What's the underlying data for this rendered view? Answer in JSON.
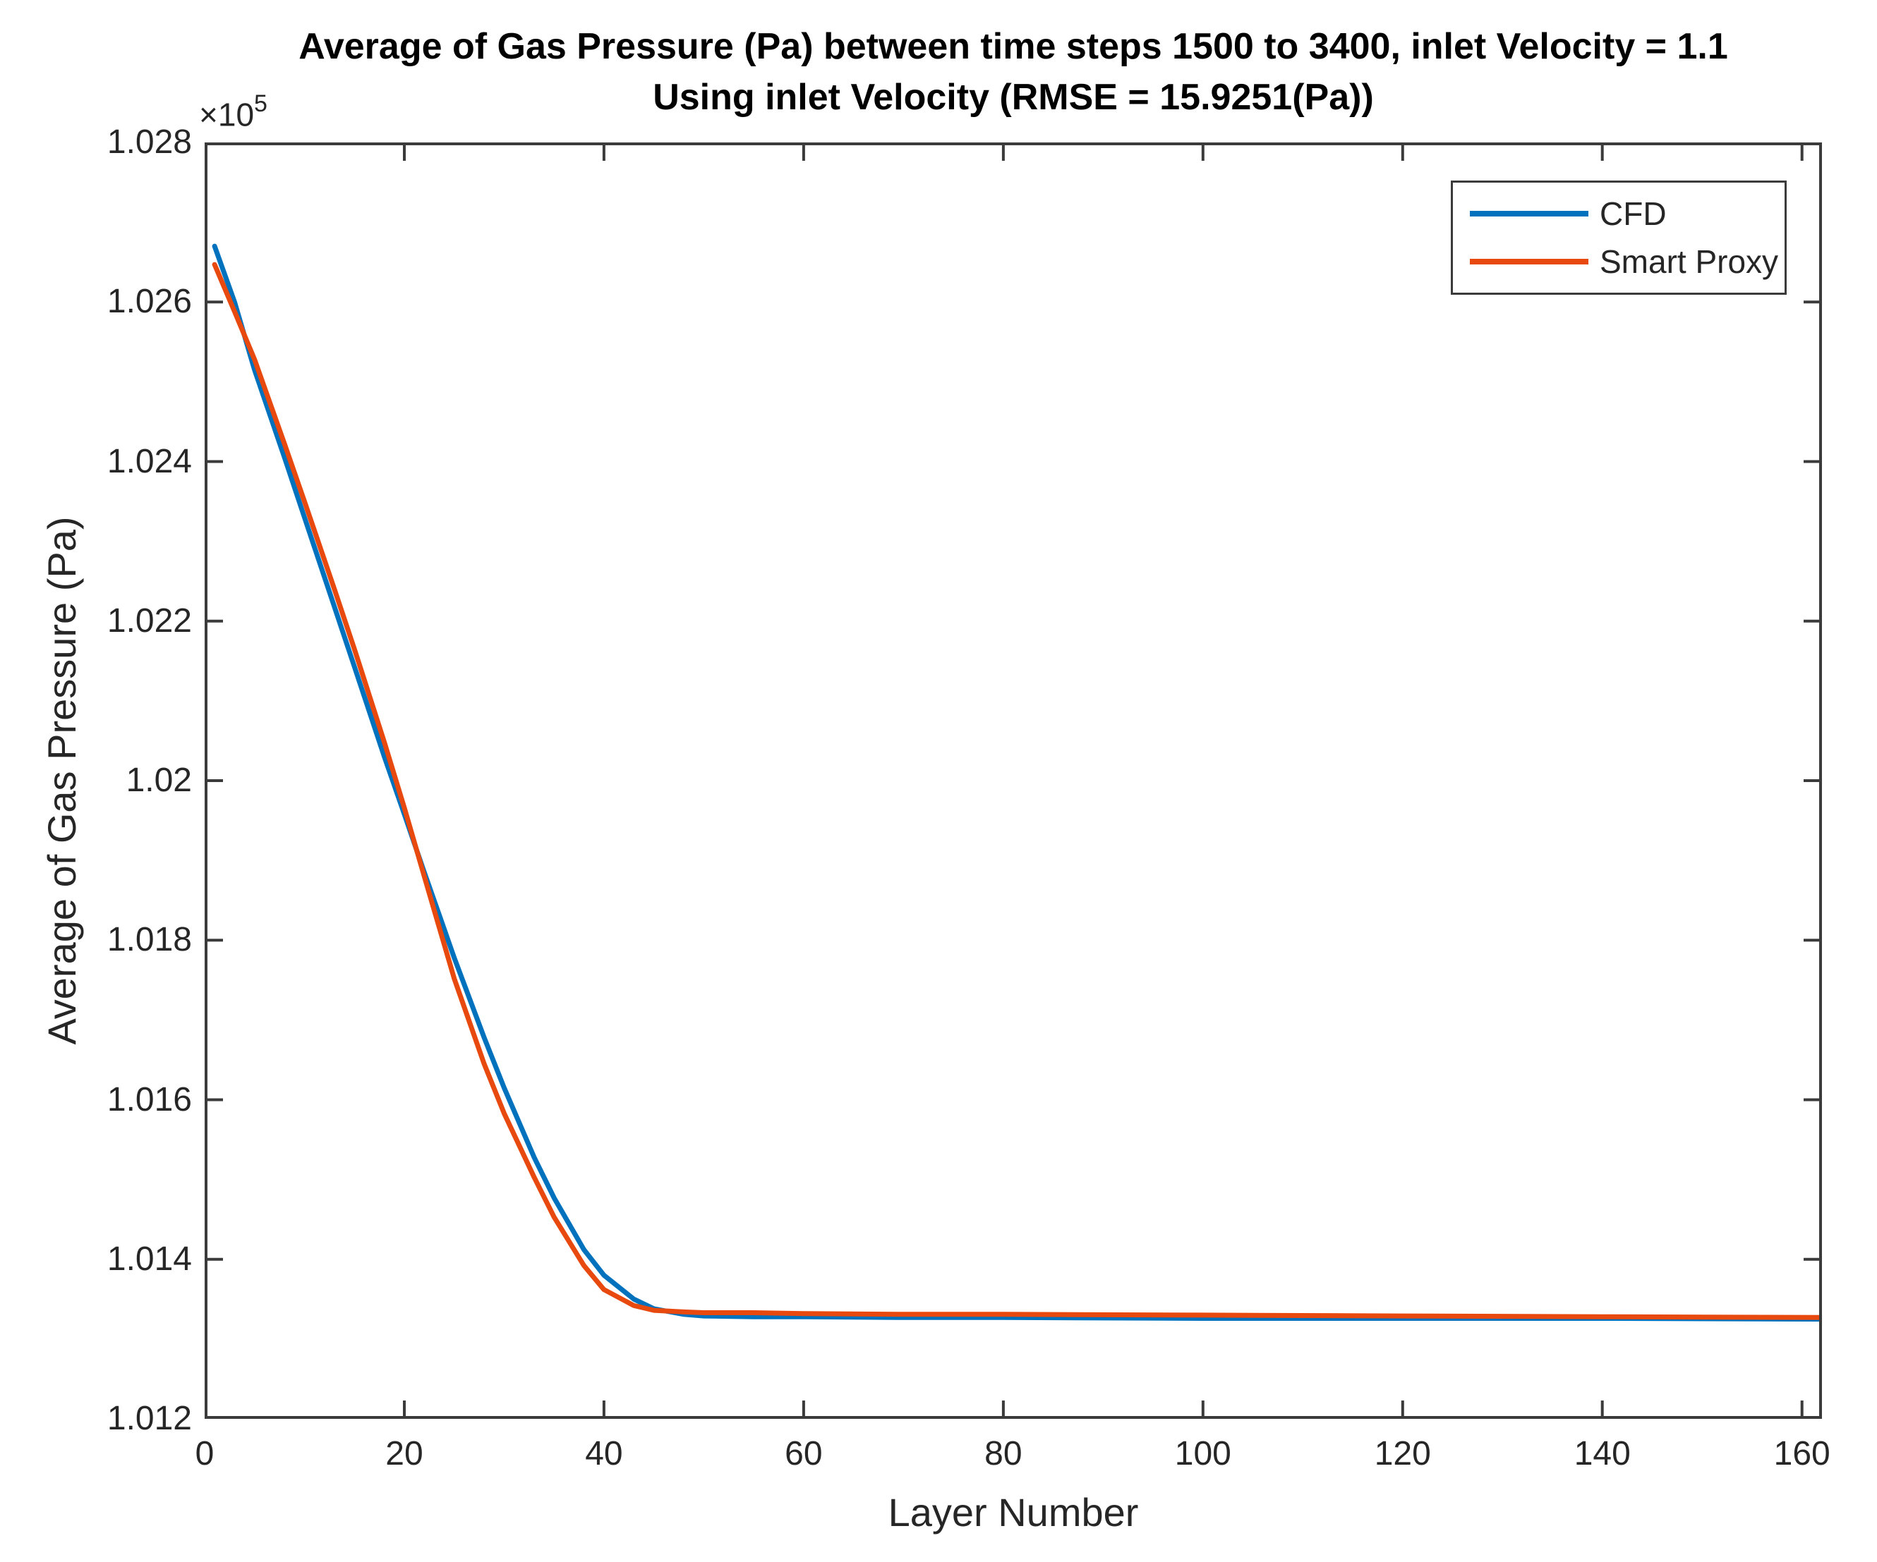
{
  "figure": {
    "title_line1": "Average of Gas Pressure (Pa) between time steps 1500 to 3400, inlet Velocity = 1.1",
    "title_line2": "Using inlet Velocity (RMSE = 15.9251(Pa))"
  },
  "axes": {
    "xlabel": "Layer Number",
    "ylabel": "Average of Gas Pressure (Pa)",
    "exponent_base": "×10",
    "exponent_power": "5",
    "axis_color": "#3b3b3b",
    "tick_label_color": "#262626"
  },
  "legend": {
    "position": "top-right",
    "items": [
      {
        "label": "CFD",
        "color": "#0072BD"
      },
      {
        "label": "Smart Proxy",
        "color": "#E8490F"
      }
    ]
  },
  "chart_data": {
    "type": "line",
    "title": "Average of Gas Pressure (Pa) between time steps 1500 to 3400, inlet Velocity = 1.1",
    "subtitle": "Using inlet Velocity (RMSE = 15.9251(Pa))",
    "xlabel": "Layer Number",
    "ylabel": "Average of Gas Pressure (Pa)",
    "y_scale_exponent": 5,
    "rmse_pa": 15.9251,
    "inlet_velocity": 1.1,
    "grid": false,
    "legend_position": "top-right",
    "xlim": [
      0,
      162
    ],
    "ylim_1e5": [
      1.012,
      1.028
    ],
    "x_ticks": [
      0,
      20,
      40,
      60,
      80,
      100,
      120,
      140,
      160
    ],
    "x_tick_labels": [
      "0",
      "20",
      "40",
      "60",
      "80",
      "100",
      "120",
      "140",
      "160"
    ],
    "y_ticks": [
      1.012,
      1.014,
      1.016,
      1.018,
      1.02,
      1.022,
      1.024,
      1.026,
      1.028
    ],
    "y_tick_labels": [
      "1.012",
      "1.014",
      "1.016",
      "1.018",
      "1.02",
      "1.022",
      "1.024",
      "1.026",
      "1.028"
    ],
    "series": [
      {
        "name": "CFD",
        "color": "#0072BD",
        "x": [
          1,
          3,
          5,
          8,
          10,
          13,
          15,
          18,
          20,
          22,
          25,
          28,
          30,
          33,
          35,
          38,
          40,
          43,
          45,
          48,
          50,
          55,
          60,
          70,
          80,
          100,
          120,
          140,
          162
        ],
        "y_1e5": [
          1.0267,
          1.026,
          1.02515,
          1.02405,
          1.0233,
          1.02218,
          1.02143,
          1.0203,
          1.01958,
          1.01885,
          1.01778,
          1.01678,
          1.01615,
          1.01528,
          1.01477,
          1.01412,
          1.0138,
          1.0135,
          1.01338,
          1.01331,
          1.01329,
          1.01328,
          1.01328,
          1.01327,
          1.01327,
          1.01326,
          1.01326,
          1.01326,
          1.01325
        ]
      },
      {
        "name": "Smart Proxy",
        "color": "#E8490F",
        "x": [
          1,
          3,
          5,
          8,
          10,
          13,
          15,
          18,
          20,
          22,
          25,
          28,
          30,
          33,
          35,
          38,
          40,
          43,
          45,
          48,
          50,
          55,
          60,
          70,
          80,
          100,
          120,
          140,
          162
        ],
        "y_1e5": [
          1.02647,
          1.02588,
          1.02528,
          1.02422,
          1.0235,
          1.0224,
          1.02165,
          1.02048,
          1.01966,
          1.0188,
          1.01752,
          1.01645,
          1.01583,
          1.01503,
          1.01453,
          1.01392,
          1.01362,
          1.01342,
          1.01336,
          1.01334,
          1.01333,
          1.01333,
          1.01332,
          1.01331,
          1.01331,
          1.0133,
          1.01329,
          1.01328,
          1.01327
        ]
      }
    ]
  }
}
